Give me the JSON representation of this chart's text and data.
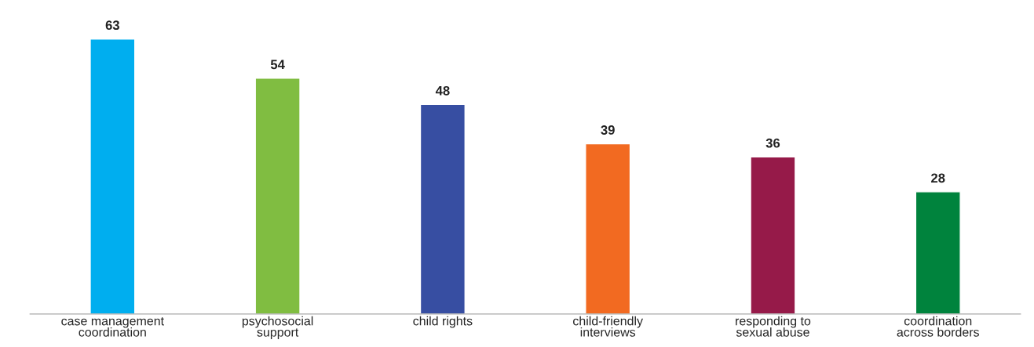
{
  "chart_data": {
    "type": "bar",
    "categories": [
      "case management\ncoordination",
      "psychosocial\nsupport",
      "child rights",
      "child-friendly\ninterviews",
      "responding to\nsexual abuse",
      "coordination\nacross borders"
    ],
    "values": [
      63,
      54,
      48,
      39,
      36,
      28
    ],
    "colors": [
      "#00aeef",
      "#80bd41",
      "#374ea2",
      "#f26a21",
      "#961a49",
      "#00833d"
    ],
    "data_labels": true,
    "tick_labels": "x"
  }
}
